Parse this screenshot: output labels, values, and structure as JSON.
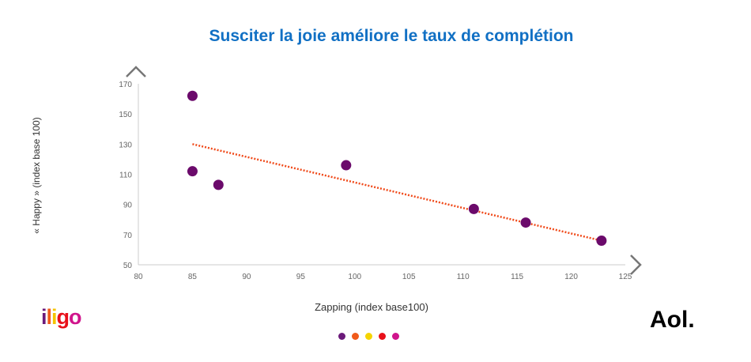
{
  "chart_data": {
    "type": "scatter",
    "title": "Susciter la joie améliore le taux de complétion",
    "xlabel": "Zapping (index base100)",
    "ylabel": "« Happy » (index base 100)",
    "xlim": [
      80,
      125
    ],
    "ylim": [
      50,
      170
    ],
    "xticks": [
      80,
      85,
      90,
      95,
      100,
      105,
      110,
      115,
      120,
      125
    ],
    "yticks": [
      50,
      70,
      90,
      110,
      130,
      150,
      170
    ],
    "grid": false,
    "points": [
      {
        "x": 85,
        "y": 162
      },
      {
        "x": 85,
        "y": 112
      },
      {
        "x": 87.4,
        "y": 103
      },
      {
        "x": 99.2,
        "y": 116
      },
      {
        "x": 111,
        "y": 87
      },
      {
        "x": 115.8,
        "y": 78
      },
      {
        "x": 122.8,
        "y": 66
      }
    ],
    "trendline": {
      "from": {
        "x": 85,
        "y": 130
      },
      "to": {
        "x": 122.8,
        "y": 66
      },
      "style": "dotted"
    },
    "colors": {
      "points": "#6b0a6b",
      "trendline": "#f04a1a",
      "title": "#1170c4"
    }
  },
  "logos": {
    "left": "iligo",
    "left_colors": [
      "#6b1a7a",
      "#f05a1a",
      "#f5c400",
      "#e8101a",
      "#d0148c"
    ],
    "right": "Aol."
  },
  "footer_dots": [
    "#6b1a7a",
    "#f05a1a",
    "#f5d400",
    "#e8101a",
    "#d0148c"
  ]
}
